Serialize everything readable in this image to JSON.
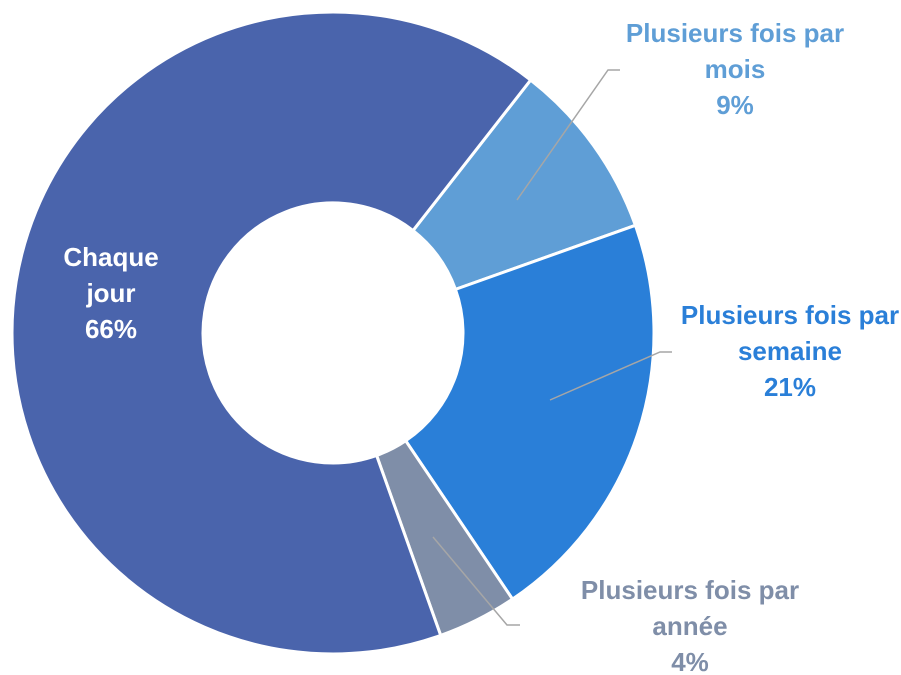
{
  "chart_data": {
    "type": "donut",
    "categories": [
      "Plusieurs fois par mois",
      "Plusieurs fois par semaine",
      "Plusieurs fois par année",
      "Chaque jour"
    ],
    "values": [
      9,
      21,
      4,
      66
    ],
    "value_labels": [
      "9%",
      "21%",
      "4%",
      "66%"
    ],
    "colors": [
      "#5f9ed6",
      "#2a7fd8",
      "#7f8ea8",
      "#4a64ac"
    ],
    "label_colors": [
      "#5f9ed6",
      "#2a7fd8",
      "#7f8ea8",
      "#ffffff"
    ]
  }
}
